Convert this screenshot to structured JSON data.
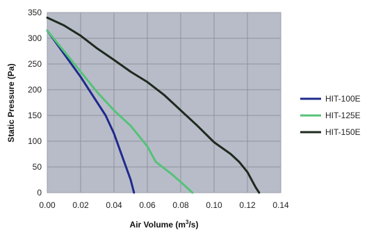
{
  "chart_data": {
    "type": "line",
    "title": "",
    "xlabel_parts": [
      "Air Volume (m",
      "3",
      "/s)"
    ],
    "ylabel": "Static Pressure (Pa)",
    "xlim": [
      0,
      0.14
    ],
    "ylim": [
      0,
      350
    ],
    "x_ticks": [
      "0.00",
      "0.02",
      "0.04",
      "0.06",
      "0.08",
      "0.10",
      "0.12",
      "0.14"
    ],
    "y_ticks": [
      "0",
      "50",
      "100",
      "150",
      "200",
      "250",
      "300",
      "350"
    ],
    "grid": true,
    "legend_position": "right",
    "series": [
      {
        "name": "HIT-100E",
        "color": "#1f2a8c",
        "points": [
          [
            0.0,
            315
          ],
          [
            0.01,
            270
          ],
          [
            0.02,
            225
          ],
          [
            0.03,
            175
          ],
          [
            0.035,
            150
          ],
          [
            0.04,
            115
          ],
          [
            0.045,
            70
          ],
          [
            0.05,
            25
          ],
          [
            0.052,
            0
          ]
        ]
      },
      {
        "name": "HIT-125E",
        "color": "#55c27a",
        "points": [
          [
            0.0,
            315
          ],
          [
            0.01,
            275
          ],
          [
            0.02,
            235
          ],
          [
            0.03,
            195
          ],
          [
            0.04,
            160
          ],
          [
            0.05,
            130
          ],
          [
            0.06,
            90
          ],
          [
            0.065,
            60
          ],
          [
            0.075,
            35
          ],
          [
            0.082,
            15
          ],
          [
            0.087,
            0
          ]
        ]
      },
      {
        "name": "HIT-150E",
        "color": "#1e2a1e",
        "points": [
          [
            0.0,
            340
          ],
          [
            0.01,
            325
          ],
          [
            0.02,
            305
          ],
          [
            0.03,
            280
          ],
          [
            0.04,
            258
          ],
          [
            0.05,
            235
          ],
          [
            0.06,
            215
          ],
          [
            0.07,
            190
          ],
          [
            0.08,
            160
          ],
          [
            0.09,
            130
          ],
          [
            0.1,
            98
          ],
          [
            0.11,
            75
          ],
          [
            0.115,
            60
          ],
          [
            0.12,
            40
          ],
          [
            0.125,
            10
          ],
          [
            0.127,
            0
          ]
        ]
      }
    ]
  }
}
